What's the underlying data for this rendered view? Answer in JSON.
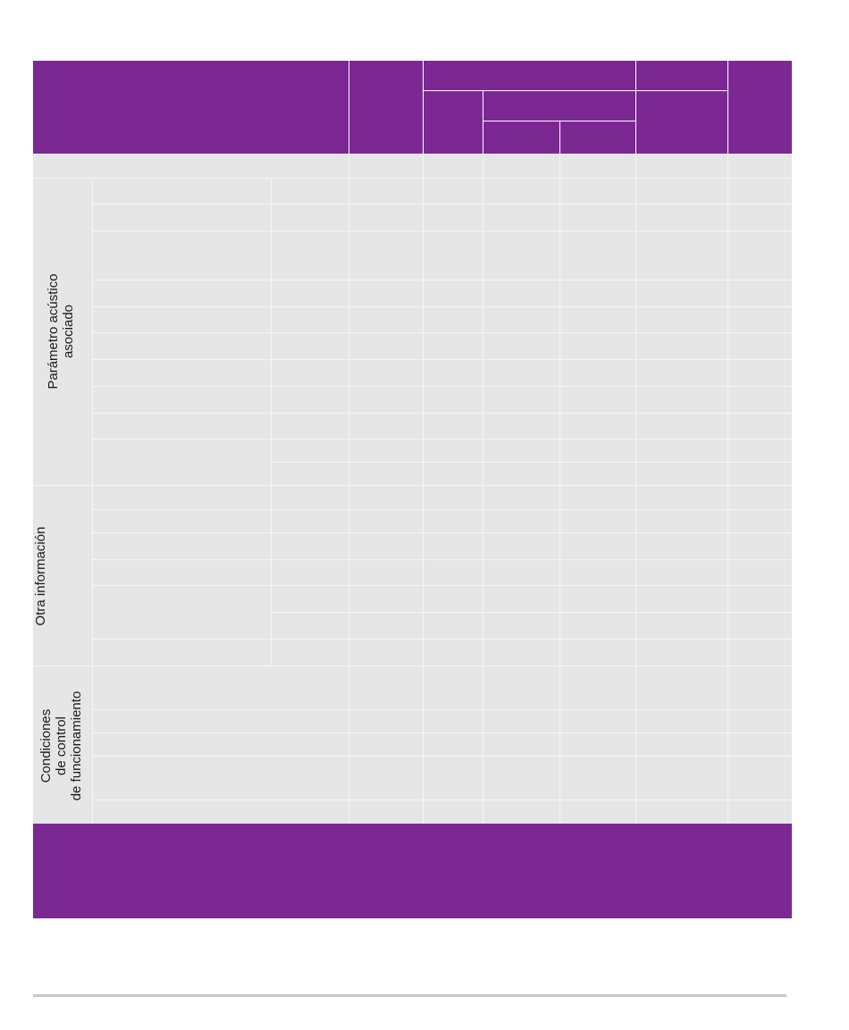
{
  "table": {
    "sections": {
      "acoustic": {
        "label": "Parámetro acústico asociado",
        "line1": "Parámetro acústico",
        "line2": "asociado"
      },
      "other": {
        "label": "Otra información"
      },
      "control": {
        "label": "Condiciones de control de funcionamiento",
        "line1": "Condiciones",
        "line2": "de control",
        "line3": "de funcionamiento"
      }
    }
  },
  "colors": {
    "header": "#7b2893",
    "body": "#e6e6e6",
    "grid": "#f6f6f6",
    "rule": "#c8c8c8"
  }
}
